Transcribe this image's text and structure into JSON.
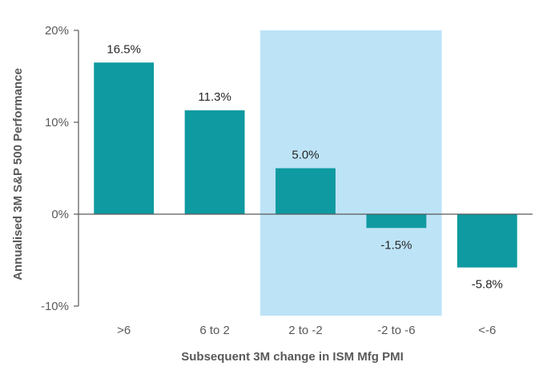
{
  "chart_data": {
    "type": "bar",
    "title": "",
    "xlabel": "Subsequent  3M change in ISM Mfg PMI",
    "ylabel": "Annualised 3M S&P 500 Performance",
    "categories": [
      ">6",
      "6 to 2",
      "2 to -2",
      "-2 to -6",
      "<-6"
    ],
    "values": [
      16.5,
      11.3,
      5.0,
      -1.5,
      -5.8
    ],
    "value_labels": [
      "16.5%",
      "11.3%",
      "5.0%",
      "-1.5%",
      "-5.8%"
    ],
    "ylim": [
      -10,
      20
    ],
    "yticks": [
      20,
      10,
      0,
      -10
    ],
    "ytick_labels": [
      "20%",
      "10%",
      "0%",
      "-10%"
    ],
    "highlight_categories": [
      "2 to -2",
      "-2 to -6"
    ],
    "grid": false,
    "legend": "none",
    "colors": {
      "bar": "#0E9AA0",
      "highlight": "#BDE3F7",
      "axis": "#595959"
    }
  }
}
